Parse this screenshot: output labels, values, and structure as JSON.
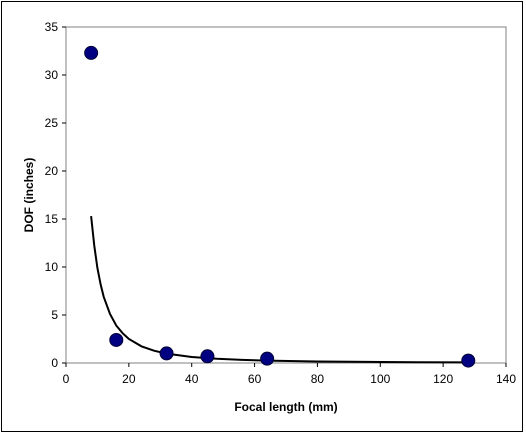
{
  "chart_data": {
    "type": "scatter",
    "title": "",
    "xlabel": "Focal length (mm)",
    "ylabel": "DOF (inches)",
    "xlim": [
      0,
      140
    ],
    "ylim": [
      0,
      35
    ],
    "x_ticks": [
      0,
      20,
      40,
      60,
      80,
      100,
      120,
      140
    ],
    "y_ticks": [
      0,
      5,
      10,
      15,
      20,
      25,
      30,
      35
    ],
    "grid": false,
    "legend": "none",
    "marker_color": "#000080",
    "series": [
      {
        "type": "scatter",
        "x": [
          8,
          16,
          32,
          45,
          64,
          128
        ],
        "y": [
          32.3,
          2.4,
          1.0,
          0.7,
          0.45,
          0.25
        ]
      }
    ],
    "trendline": {
      "type": "power",
      "color": "#000000",
      "x": [
        8,
        9,
        10,
        11,
        12,
        14,
        16,
        18,
        20,
        24,
        28,
        32,
        40,
        48,
        56,
        64,
        80,
        96,
        112,
        128
      ],
      "y": [
        15.3,
        12.2,
        9.9,
        8.2,
        6.9,
        5.1,
        3.9,
        3.1,
        2.5,
        1.74,
        1.28,
        0.98,
        0.63,
        0.44,
        0.32,
        0.25,
        0.16,
        0.11,
        0.08,
        0.06
      ]
    }
  }
}
